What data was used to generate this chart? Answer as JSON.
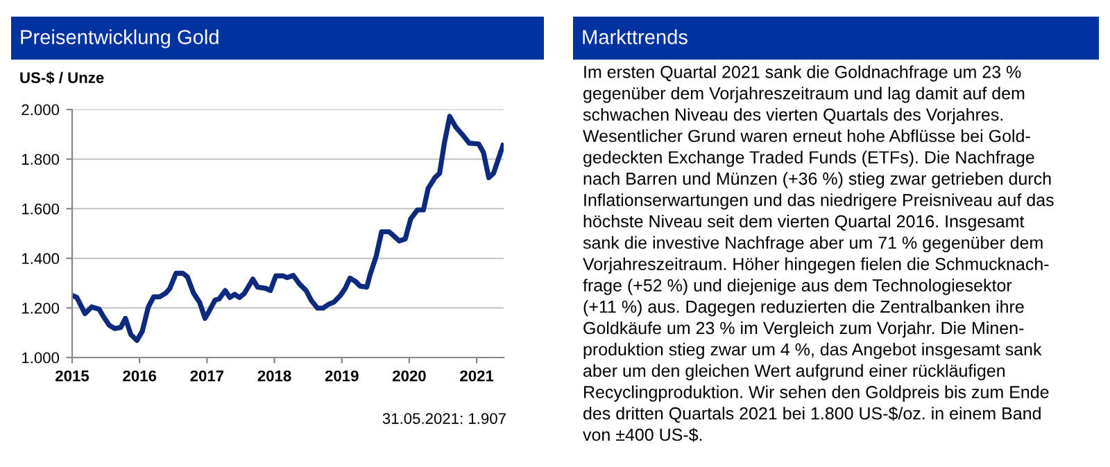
{
  "chart_data": [
    {
      "type": "line",
      "title": "Preisentwicklung Gold",
      "ylabel": "US-$ / Unze",
      "color": "#0d2a7e",
      "marker": "none",
      "line_style": "solid",
      "grid": "y",
      "x": [
        2015.0,
        2015.07,
        2015.19,
        2015.29,
        2015.4,
        2015.46,
        2015.55,
        2015.63,
        2015.72,
        2015.79,
        2015.87,
        2015.96,
        2016.04,
        2016.13,
        2016.21,
        2016.3,
        2016.39,
        2016.45,
        2016.54,
        2016.64,
        2016.71,
        2016.8,
        2016.89,
        2016.97,
        2017.03,
        2017.12,
        2017.18,
        2017.27,
        2017.34,
        2017.41,
        2017.48,
        2017.55,
        2017.62,
        2017.68,
        2017.75,
        2017.87,
        2017.94,
        2018.02,
        2018.13,
        2018.19,
        2018.28,
        2018.37,
        2018.47,
        2018.55,
        2018.64,
        2018.72,
        2018.8,
        2018.88,
        2018.98,
        2019.05,
        2019.12,
        2019.2,
        2019.27,
        2019.37,
        2019.42,
        2019.51,
        2019.59,
        2019.7,
        2019.76,
        2019.85,
        2019.94,
        2020.02,
        2020.12,
        2020.21,
        2020.28,
        2020.38,
        2020.45,
        2020.52,
        2020.6,
        2020.69,
        2020.79,
        2020.89,
        2021.03,
        2021.1,
        2021.18,
        2021.25,
        2021.32,
        2021.39
      ],
      "values": [
        1251,
        1242,
        1177,
        1204,
        1195,
        1167,
        1130,
        1117,
        1121,
        1158,
        1093,
        1069,
        1106,
        1204,
        1245,
        1245,
        1260,
        1279,
        1340,
        1340,
        1325,
        1260,
        1223,
        1158,
        1186,
        1232,
        1236,
        1270,
        1242,
        1255,
        1242,
        1257,
        1288,
        1316,
        1284,
        1279,
        1270,
        1329,
        1329,
        1322,
        1331,
        1297,
        1270,
        1229,
        1199,
        1199,
        1214,
        1223,
        1251,
        1279,
        1320,
        1307,
        1288,
        1284,
        1335,
        1409,
        1507,
        1507,
        1493,
        1470,
        1478,
        1558,
        1595,
        1595,
        1682,
        1725,
        1743,
        1864,
        1972,
        1929,
        1898,
        1864,
        1861,
        1827,
        1725,
        1743,
        1799,
        1855
      ],
      "xlim": [
        2015,
        2021.4
      ],
      "xticks": [
        2015,
        2016,
        2017,
        2018,
        2019,
        2020,
        2021
      ],
      "ylim": [
        1000,
        2000
      ],
      "yticks": [
        {
          "value": 1000,
          "label": "1.000"
        },
        {
          "value": 1200,
          "label": "1.200"
        },
        {
          "value": 1400,
          "label": "1.400"
        },
        {
          "value": 1600,
          "label": "1.600"
        },
        {
          "value": 1800,
          "label": "1.800"
        },
        {
          "value": 2000,
          "label": "2.000"
        }
      ],
      "annotations": [
        "31.05.2021: 1.907"
      ]
    },
    {
      "type": "other",
      "title": "Markttrends",
      "annotations": [
        "Im ersten Quartal 2021 sank die Goldnachfrage um 23 %",
        "gegenüber dem Vorjahreszeitraum und lag damit auf dem",
        "schwachen Niveau des vierten Quartals des Vorjahres.",
        "Wesentlicher Grund waren erneut hohe Abflüsse bei Gold-",
        "gedeckten Exchange Traded Funds (ETFs). Die Nachfrage",
        "nach Barren und Münzen (+36 %) stieg zwar getrieben durch",
        "Inflationserwartungen und das niedrigere Preisniveau auf das",
        "höchste Niveau seit dem vierten Quartal 2016. Insgesamt",
        "sank die investive Nachfrage aber um 71 % gegenüber dem",
        "Vorjahreszeitraum. Höher hingegen fielen die Schmucknach-",
        "frage (+52 %) und diejenige aus dem Technologiesektor",
        "(+11 %) aus. Dagegen reduzierten die Zentralbanken ihre",
        "Goldkäufe um 23 % im Vergleich zum Vorjahr. Die Minen-",
        "produktion stieg zwar um 4 %, das Angebot insgesamt sank",
        "aber um den gleichen Wert aufgrund einer rückläufigen",
        "Recyclingproduktion. Wir sehen den Goldpreis bis zum Ende",
        "des dritten Quartals 2021 bei 1.800 US-$/oz. in einem Band",
        "von ±400 US-$."
      ]
    }
  ]
}
